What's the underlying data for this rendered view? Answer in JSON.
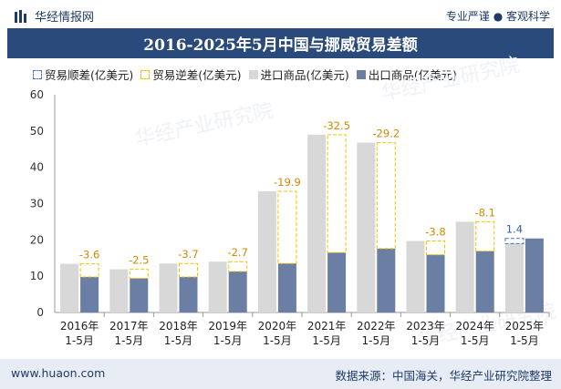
{
  "header": {
    "brand": "华经情报网",
    "tagline": "专业严谨 ● 客观科学"
  },
  "footer": {
    "url": "www.huaon.com",
    "source": "数据来源：中国海关，华经产业研究院整理"
  },
  "watermark": "华经产业研究院",
  "colors": {
    "import": "#d8d8d8",
    "export": "#6b7ea3",
    "surplus_border": "#4472c4",
    "deficit_border": "#f2c200",
    "surplus_label": "#3d5f9e",
    "deficit_label": "#d08a00",
    "title_bg": "#2a4a7b"
  },
  "chart_data": {
    "type": "bar",
    "title": "2016-2025年5月中国与挪威贸易差额",
    "categories": [
      "2016年\n1-5月",
      "2017年\n1-5月",
      "2018年\n1-5月",
      "2019年\n1-5月",
      "2020年\n1-5月",
      "2021年\n1-5月",
      "2022年\n1-5月",
      "2023年\n1-5月",
      "2024年\n1-5月",
      "2025年\n1-5月"
    ],
    "ylim": [
      0,
      60
    ],
    "yticks": [
      0,
      10,
      20,
      30,
      40,
      50,
      60
    ],
    "legend_position": "top-left",
    "grid": false,
    "series": [
      {
        "name": "贸易顺差(亿美元)",
        "key": "surplus",
        "style": "dashed-box"
      },
      {
        "name": "贸易逆差(亿美元)",
        "key": "deficit",
        "style": "dashed-box"
      },
      {
        "name": "进口商品(亿美元)",
        "key": "import",
        "values": [
          13.4,
          11.9,
          13.5,
          14.0,
          33.4,
          49.0,
          46.8,
          19.7,
          25.0,
          19.0
        ]
      },
      {
        "name": "出口商品(亿美元)",
        "key": "export",
        "values": [
          9.8,
          9.4,
          9.8,
          11.3,
          13.5,
          16.5,
          17.6,
          15.9,
          16.9,
          20.4
        ]
      }
    ],
    "balance_labels": [
      "-3.6",
      "-2.5",
      "-3.7",
      "-2.7",
      "-19.9",
      "-32.5",
      "-29.2",
      "-3.8",
      "-8.1",
      "1.4"
    ]
  }
}
